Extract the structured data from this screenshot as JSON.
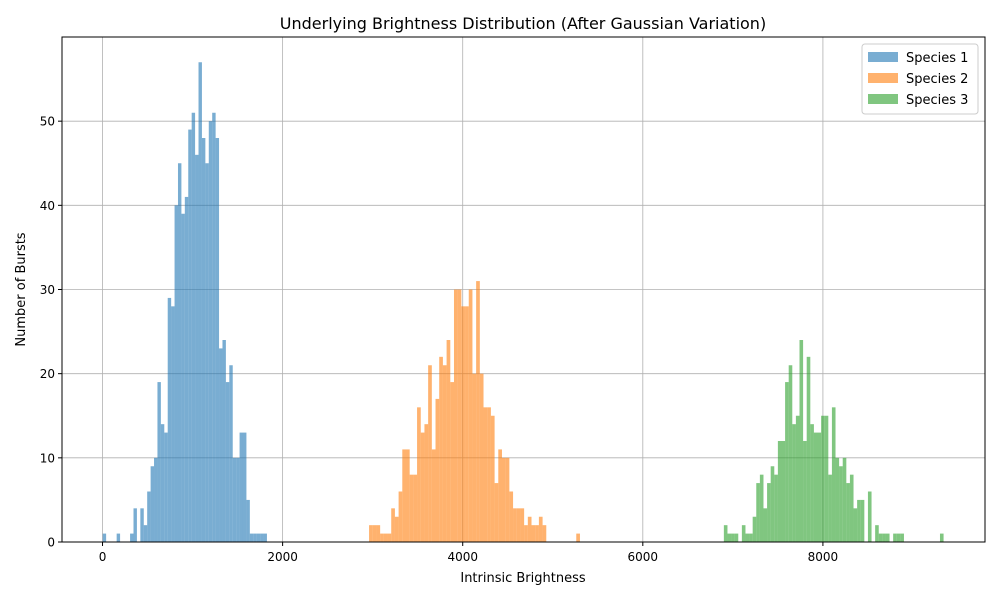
{
  "chart_data": {
    "type": "bar",
    "title": "Underlying Brightness Distribution (After Gaussian Variation)",
    "xlabel": "Intrinsic Brightness",
    "ylabel": "Number of Bursts",
    "xlim": [
      -450,
      9800
    ],
    "ylim": [
      0,
      60
    ],
    "xticks": [
      0,
      2000,
      4000,
      6000,
      8000
    ],
    "xtick_labels": [
      "0",
      "2000",
      "4000",
      "6000",
      "8000"
    ],
    "yticks": [
      0,
      10,
      20,
      30,
      40,
      50
    ],
    "ytick_labels": [
      "0",
      "10",
      "20",
      "30",
      "40",
      "50"
    ],
    "grid": true,
    "legend_position": "top-right",
    "series": [
      {
        "name": "Species 1",
        "color": "#1f77b4",
        "alpha": 0.6,
        "bin_width": 38,
        "bins": [
          [
            2,
            1
          ],
          [
            157,
            1
          ],
          [
            306,
            1
          ],
          [
            344,
            4
          ],
          [
            420,
            4
          ],
          [
            458,
            2
          ],
          [
            496,
            6
          ],
          [
            534,
            9
          ],
          [
            572,
            10
          ],
          [
            610,
            19
          ],
          [
            648,
            14
          ],
          [
            686,
            13
          ],
          [
            724,
            29
          ],
          [
            762,
            28
          ],
          [
            800,
            40
          ],
          [
            838,
            45
          ],
          [
            876,
            39
          ],
          [
            914,
            41
          ],
          [
            952,
            49
          ],
          [
            990,
            51
          ],
          [
            1028,
            46
          ],
          [
            1066,
            57
          ],
          [
            1104,
            48
          ],
          [
            1142,
            45
          ],
          [
            1180,
            50
          ],
          [
            1218,
            51
          ],
          [
            1256,
            48
          ],
          [
            1294,
            23
          ],
          [
            1332,
            24
          ],
          [
            1370,
            19
          ],
          [
            1408,
            21
          ],
          [
            1446,
            10
          ],
          [
            1484,
            10
          ],
          [
            1522,
            13
          ],
          [
            1560,
            13
          ],
          [
            1598,
            5
          ],
          [
            1636,
            1
          ],
          [
            1674,
            1
          ],
          [
            1712,
            1
          ],
          [
            1750,
            1
          ],
          [
            1788,
            1
          ]
        ]
      },
      {
        "name": "Species 2",
        "color": "#ff7f0e",
        "alpha": 0.6,
        "bin_width": 41,
        "bins": [
          [
            2960,
            2
          ],
          [
            3001,
            2
          ],
          [
            3042,
            2
          ],
          [
            3083,
            1
          ],
          [
            3124,
            1
          ],
          [
            3165,
            1
          ],
          [
            3206,
            4
          ],
          [
            3247,
            3
          ],
          [
            3288,
            6
          ],
          [
            3329,
            11
          ],
          [
            3370,
            11
          ],
          [
            3411,
            8
          ],
          [
            3452,
            8
          ],
          [
            3493,
            16
          ],
          [
            3534,
            13
          ],
          [
            3575,
            14
          ],
          [
            3616,
            21
          ],
          [
            3657,
            11
          ],
          [
            3698,
            17
          ],
          [
            3739,
            22
          ],
          [
            3780,
            21
          ],
          [
            3821,
            24
          ],
          [
            3862,
            19
          ],
          [
            3903,
            30
          ],
          [
            3944,
            30
          ],
          [
            3985,
            28
          ],
          [
            4026,
            28
          ],
          [
            4067,
            30
          ],
          [
            4108,
            20
          ],
          [
            4149,
            31
          ],
          [
            4190,
            20
          ],
          [
            4231,
            16
          ],
          [
            4272,
            16
          ],
          [
            4313,
            15
          ],
          [
            4354,
            7
          ],
          [
            4395,
            11
          ],
          [
            4436,
            10
          ],
          [
            4477,
            10
          ],
          [
            4518,
            6
          ],
          [
            4559,
            4
          ],
          [
            4600,
            4
          ],
          [
            4641,
            4
          ],
          [
            4682,
            2
          ],
          [
            4723,
            3
          ],
          [
            4764,
            2
          ],
          [
            4805,
            2
          ],
          [
            4846,
            3
          ],
          [
            4887,
            2
          ],
          [
            5261,
            1
          ]
        ]
      },
      {
        "name": "Species 3",
        "color": "#2ca02c",
        "alpha": 0.6,
        "bin_width": 40,
        "bins": [
          [
            6900,
            2
          ],
          [
            6940,
            1
          ],
          [
            6980,
            1
          ],
          [
            7020,
            1
          ],
          [
            7100,
            2
          ],
          [
            7140,
            1
          ],
          [
            7180,
            1
          ],
          [
            7220,
            3
          ],
          [
            7260,
            7
          ],
          [
            7300,
            8
          ],
          [
            7340,
            4
          ],
          [
            7380,
            7
          ],
          [
            7420,
            9
          ],
          [
            7460,
            8
          ],
          [
            7500,
            12
          ],
          [
            7540,
            12
          ],
          [
            7580,
            19
          ],
          [
            7620,
            21
          ],
          [
            7660,
            14
          ],
          [
            7700,
            15
          ],
          [
            7740,
            24
          ],
          [
            7780,
            12
          ],
          [
            7820,
            22
          ],
          [
            7860,
            14
          ],
          [
            7900,
            13
          ],
          [
            7940,
            13
          ],
          [
            7980,
            15
          ],
          [
            8020,
            15
          ],
          [
            8060,
            8
          ],
          [
            8100,
            16
          ],
          [
            8140,
            10
          ],
          [
            8180,
            9
          ],
          [
            8220,
            10
          ],
          [
            8260,
            7
          ],
          [
            8300,
            8
          ],
          [
            8340,
            4
          ],
          [
            8380,
            5
          ],
          [
            8420,
            5
          ],
          [
            8500,
            6
          ],
          [
            8580,
            2
          ],
          [
            8620,
            1
          ],
          [
            8660,
            1
          ],
          [
            8700,
            1
          ],
          [
            8780,
            1
          ],
          [
            8820,
            1
          ],
          [
            8860,
            1
          ],
          [
            9300,
            1
          ]
        ]
      }
    ]
  }
}
